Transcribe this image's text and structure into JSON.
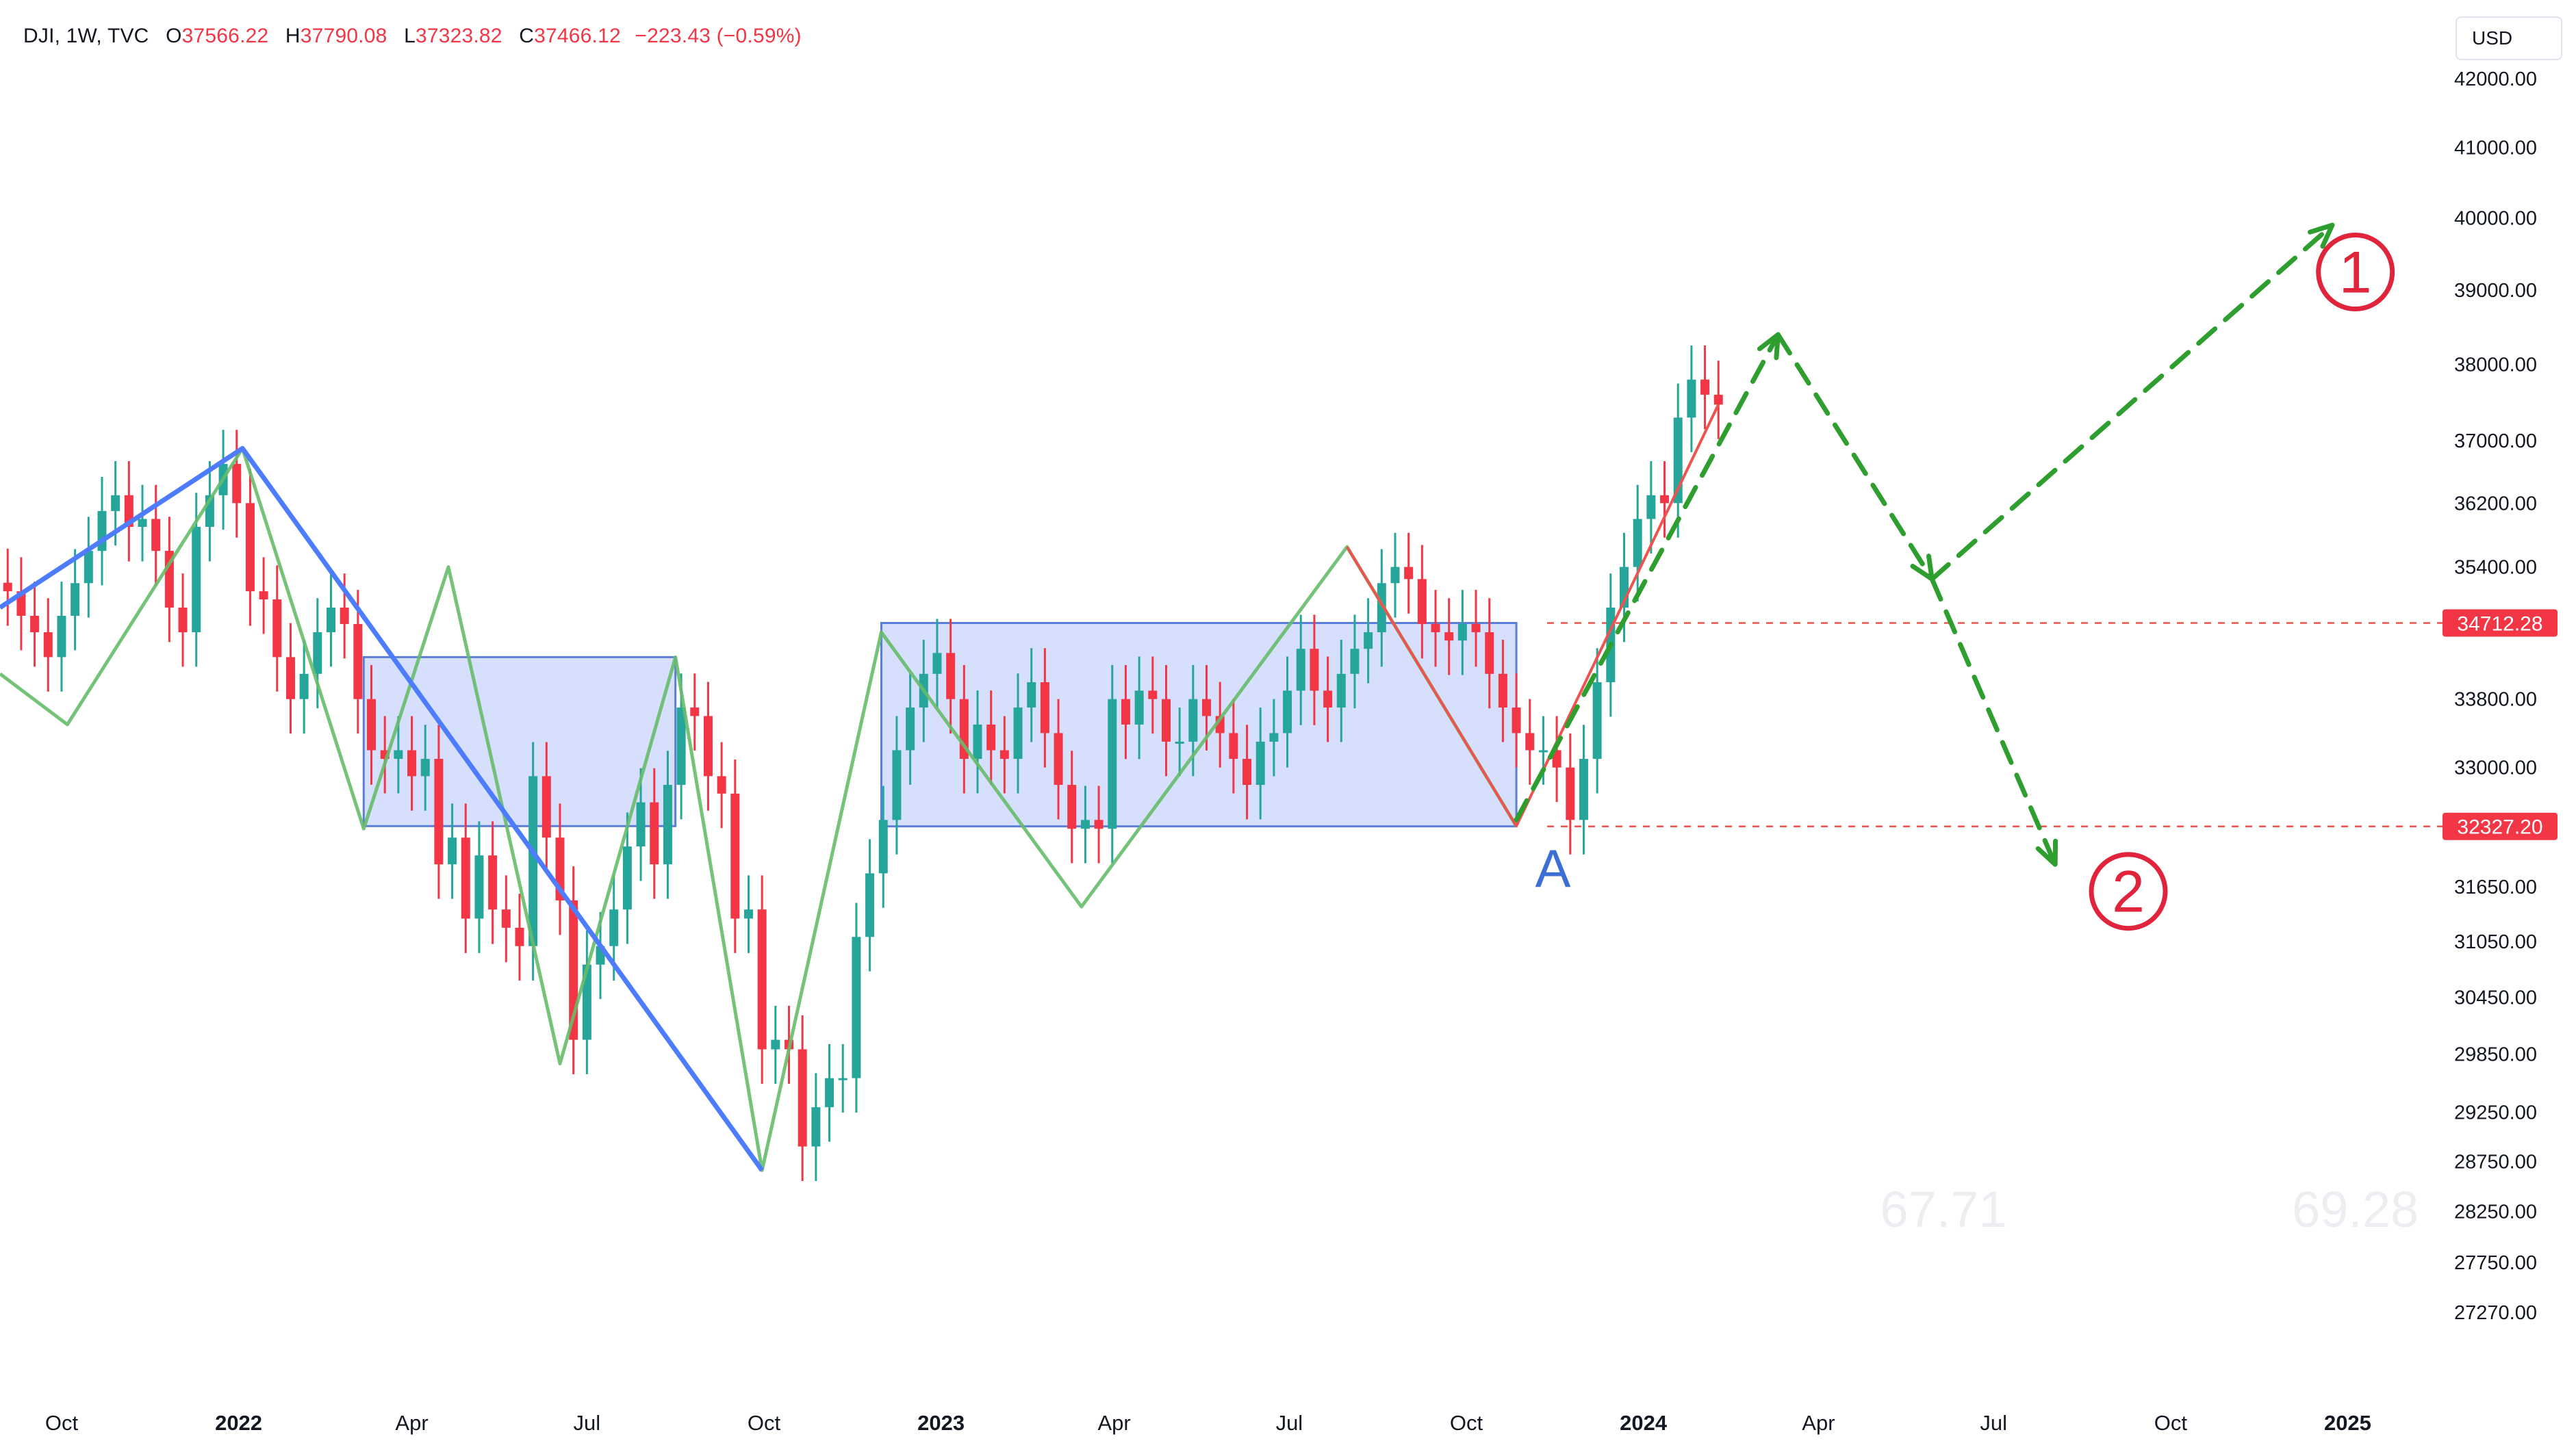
{
  "header": {
    "symbol": "DJI, 1W, TVC",
    "open_label": "O",
    "open": "37566.22",
    "high_label": "H",
    "high": "37790.08",
    "low_label": "L",
    "low": "37323.82",
    "close_label": "C",
    "close": "37466.12",
    "change": "−223.43 (−0.59%)"
  },
  "currency_button": "USD",
  "colors": {
    "up": "#26a69a",
    "down": "#f23645",
    "zigzag_green": "#66bb6a",
    "zigzag_red": "#ef5350",
    "trend_blue": "#4d7cfe",
    "box_fill": "#c8d4fa",
    "projection": "#2e9e2e",
    "label_red": "#e0243c"
  },
  "chart_data": {
    "type": "candlestick",
    "symbol": "DJI",
    "interval": "1W",
    "y_scale": "log",
    "ylim": [
      26900,
      42200
    ],
    "x_range": [
      "2021-08-30",
      "2025-02-20"
    ],
    "y_ticks": [
      "42000.00",
      "41000.00",
      "40000.00",
      "39000.00",
      "38000.00",
      "37000.00",
      "36200.00",
      "35400.00",
      "33800.00",
      "33000.00",
      "31650.00",
      "31050.00",
      "30450.00",
      "29850.00",
      "29250.00",
      "28750.00",
      "28250.00",
      "27750.00",
      "27270.00"
    ],
    "x_ticks": [
      {
        "label": "Oct",
        "date": "2021-10-01",
        "bold": false
      },
      {
        "label": "2022",
        "date": "2022-01-01",
        "bold": true
      },
      {
        "label": "Apr",
        "date": "2022-04-01",
        "bold": false
      },
      {
        "label": "Jul",
        "date": "2022-07-01",
        "bold": false
      },
      {
        "label": "Oct",
        "date": "2022-10-01",
        "bold": false
      },
      {
        "label": "2023",
        "date": "2023-01-01",
        "bold": true
      },
      {
        "label": "Apr",
        "date": "2023-04-01",
        "bold": false
      },
      {
        "label": "Jul",
        "date": "2023-07-01",
        "bold": false
      },
      {
        "label": "Oct",
        "date": "2023-10-01",
        "bold": false
      },
      {
        "label": "2024",
        "date": "2024-01-01",
        "bold": true
      },
      {
        "label": "Apr",
        "date": "2024-04-01",
        "bold": false
      },
      {
        "label": "Jul",
        "date": "2024-07-01",
        "bold": false
      },
      {
        "label": "Oct",
        "date": "2024-10-01",
        "bold": false
      },
      {
        "label": "2025",
        "date": "2025-01-01",
        "bold": true
      }
    ],
    "weekly_closes_start": "2021-09-03",
    "weekly_closes": [
      35100,
      34800,
      34600,
      34300,
      34800,
      35200,
      35600,
      36100,
      36300,
      35900,
      36000,
      35600,
      34900,
      34600,
      35900,
      36300,
      36700,
      36200,
      35100,
      35000,
      34300,
      33800,
      34100,
      34600,
      34900,
      34700,
      33800,
      33200,
      33100,
      33200,
      32900,
      33100,
      31900,
      32200,
      31300,
      32000,
      31400,
      31200,
      31000,
      32900,
      32200,
      31500,
      30000,
      30800,
      31000,
      31400,
      32100,
      32600,
      31900,
      32800,
      33700,
      33600,
      32900,
      32700,
      31300,
      31400,
      29900,
      30000,
      29900,
      28900,
      29300,
      29600,
      29600,
      31100,
      31800,
      32400,
      33200,
      33700,
      34100,
      34350,
      33800,
      33100,
      33500,
      33200,
      33100,
      33700,
      34000,
      33400,
      32800,
      32300,
      32400,
      32300,
      33800,
      33500,
      33900,
      33800,
      33300,
      33300,
      33800,
      33600,
      33400,
      33100,
      32800,
      33300,
      33400,
      33900,
      34400,
      33900,
      33700,
      34100,
      34400,
      34600,
      35200,
      35400,
      35250,
      34700,
      34600,
      34500,
      34700,
      34600,
      34100,
      33700,
      33400,
      33200,
      33200,
      33000,
      32400,
      33100,
      34000,
      34900,
      35400,
      36000,
      36300,
      36200,
      37300,
      37800,
      37600,
      37470
    ],
    "pivots_green": [
      {
        "date": "2021-08-30",
        "y": 34100
      },
      {
        "date": "2021-10-04",
        "y": 33500
      },
      {
        "date": "2022-01-03",
        "y": 36900
      },
      {
        "date": "2022-03-07",
        "y": 32300
      },
      {
        "date": "2022-04-20",
        "y": 35400
      },
      {
        "date": "2022-06-17",
        "y": 29750
      },
      {
        "date": "2022-08-16",
        "y": 34300
      },
      {
        "date": "2022-09-30",
        "y": 28660
      },
      {
        "date": "2022-12-01",
        "y": 34600
      },
      {
        "date": "2023-03-15",
        "y": 31430
      },
      {
        "date": "2023-07-31",
        "y": 35650
      },
      {
        "date": "2023-10-27",
        "y": 32330
      }
    ],
    "pivots_blue": [
      {
        "date": "2021-08-30",
        "y": 34900
      },
      {
        "date": "2022-01-03",
        "y": 36900
      },
      {
        "date": "2022-09-30",
        "y": 28660
      }
    ],
    "zones": [
      {
        "from": "2022-03-07",
        "to": "2022-08-16",
        "low": 32330,
        "high": 34300
      },
      {
        "from": "2022-12-01",
        "to": "2023-10-27",
        "low": 32327.2,
        "high": 34712.28
      }
    ],
    "levels": [
      {
        "value": 34712.28,
        "label": "34712.28"
      },
      {
        "value": 32327.2,
        "label": "32327.20"
      }
    ],
    "projections": {
      "main_path": [
        {
          "date": "2023-10-27",
          "y": 32400
        },
        {
          "date": "2024-03-11",
          "y": 38400
        },
        {
          "date": "2024-05-30",
          "y": 35250
        }
      ],
      "scenario_1": [
        {
          "date": "2024-05-30",
          "y": 35250
        },
        {
          "date": "2024-12-24",
          "y": 39900
        }
      ],
      "scenario_2": [
        {
          "date": "2024-05-30",
          "y": 35250
        },
        {
          "date": "2024-08-02",
          "y": 31900
        }
      ]
    },
    "annotations": [
      {
        "text": "A",
        "date": "2023-11-15",
        "y": 31650,
        "style": "point"
      },
      {
        "text": "1",
        "date": "2025-01-05",
        "y": 39250,
        "style": "circled"
      },
      {
        "text": "2",
        "date": "2024-09-09",
        "y": 31600,
        "style": "circled"
      },
      {
        "text": "67.71",
        "date": "2024-06-05",
        "y": 28100,
        "style": "faint"
      },
      {
        "text": "69.28",
        "date": "2025-01-05",
        "y": 28100,
        "style": "faint"
      }
    ]
  }
}
